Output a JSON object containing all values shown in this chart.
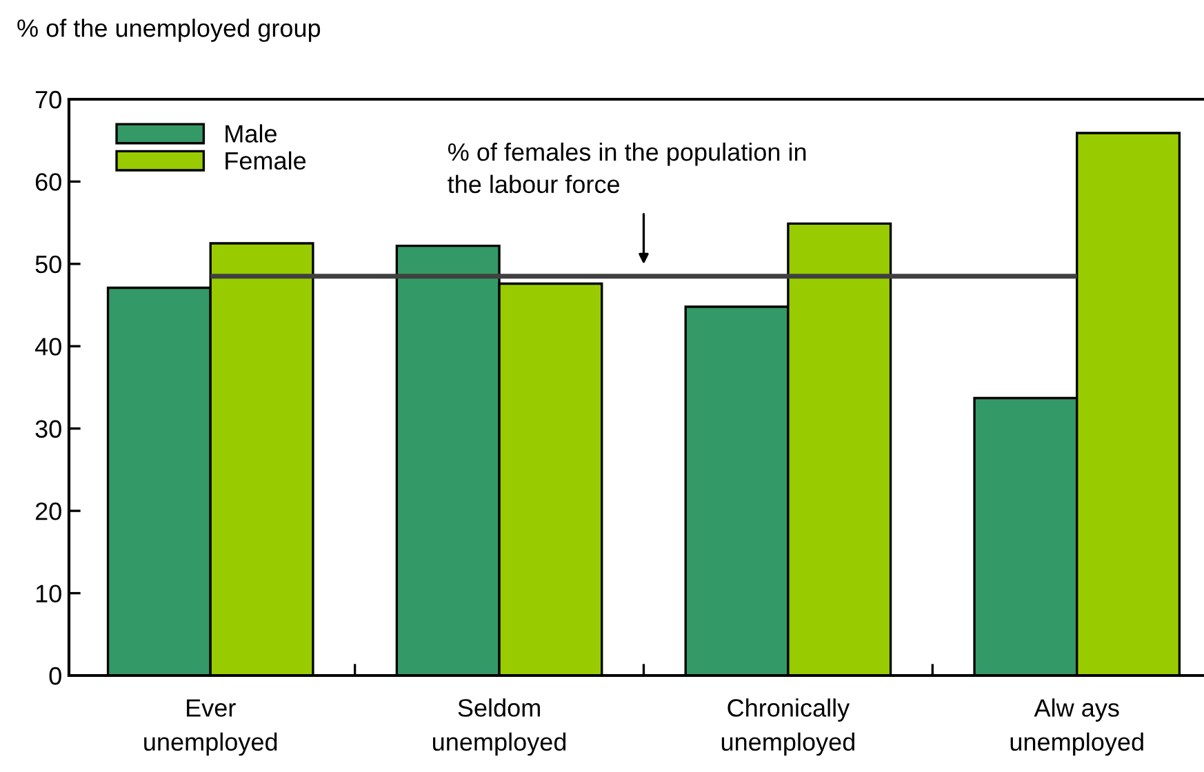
{
  "chart_data": {
    "type": "bar",
    "ylabel": "% of the unemployed group",
    "categories": [
      "Ever\nunemployed",
      "Seldom\nunemployed",
      "Chronically\nunemployed",
      "Alw ays\nunemployed"
    ],
    "series": [
      {
        "name": "Male",
        "color": "#339966",
        "values": [
          47.1,
          52.2,
          44.8,
          33.7
        ]
      },
      {
        "name": "Female",
        "color": "#99cc00",
        "values": [
          52.5,
          47.6,
          54.9,
          65.9
        ]
      }
    ],
    "ref_lines": [
      {
        "axis": "y",
        "value": 48.5,
        "label": "% of females in the population in\nthe labour force",
        "color": "#404040"
      }
    ],
    "ylim": [
      0,
      70
    ],
    "yticks": [
      0,
      10,
      20,
      30,
      40,
      50,
      60,
      70
    ],
    "legend": "top left",
    "grid": false
  }
}
